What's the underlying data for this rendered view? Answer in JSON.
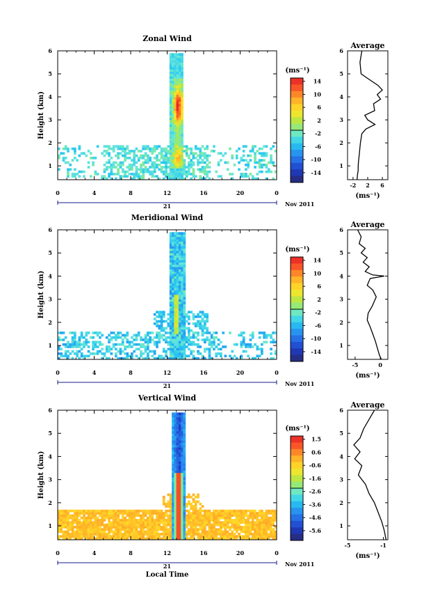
{
  "chart_data": [
    {
      "type": "heatmap",
      "title": "Zonal Wind",
      "ylabel": "Height (km)",
      "x_tick_labels": [
        "0",
        "4",
        "8",
        "12",
        "16",
        "20",
        "0"
      ],
      "y_tick_labels": [
        "1",
        "2",
        "3",
        "4",
        "5",
        "6"
      ],
      "xlim": [
        0,
        24
      ],
      "ylim": [
        0.4,
        6
      ],
      "day_label": "21",
      "month_label": "Nov 2011",
      "colorbar": {
        "unit": "(ms⁻¹)",
        "ticks": [
          "14",
          "10",
          "6",
          "2",
          "-2",
          "-6",
          "-10",
          "-14"
        ],
        "range": [
          -16,
          16
        ]
      },
      "profile": {
        "title": "Average",
        "xlabel": "(ms⁻¹)",
        "x_tick_labels": [
          "-2",
          "2",
          "6"
        ],
        "xlim": [
          -3.5,
          7.5
        ],
        "x": [
          0.4,
          -0.1,
          0.2,
          2.0,
          4.8,
          6.0,
          4.6,
          5.5,
          3.6,
          3.9,
          1.2,
          2.0,
          4.0,
          1.5,
          0.4,
          0.0,
          -0.3,
          -0.5,
          -0.6,
          -0.6,
          -0.8,
          -0.9
        ],
        "y": [
          6.0,
          5.5,
          5.0,
          4.8,
          4.5,
          4.3,
          4.1,
          3.9,
          3.7,
          3.4,
          3.2,
          3.0,
          2.8,
          2.6,
          2.4,
          2.0,
          1.5,
          1.2,
          1.0,
          0.8,
          0.6,
          0.4
        ]
      }
    },
    {
      "type": "heatmap",
      "title": "Meridional Wind",
      "ylabel": "Height (km)",
      "x_tick_labels": [
        "0",
        "4",
        "8",
        "12",
        "16",
        "20",
        "0"
      ],
      "y_tick_labels": [
        "1",
        "2",
        "3",
        "4",
        "5",
        "6"
      ],
      "xlim": [
        0,
        24
      ],
      "ylim": [
        0.4,
        6
      ],
      "day_label": "21",
      "month_label": "Nov 2011",
      "colorbar": {
        "unit": "(ms⁻¹)",
        "ticks": [
          "14",
          "10",
          "6",
          "2",
          "-2",
          "-6",
          "-10",
          "-14"
        ],
        "range": [
          -16,
          16
        ]
      },
      "profile": {
        "title": "Average",
        "xlabel": "(ms⁻¹)",
        "x_tick_labels": [
          "-5",
          "0"
        ],
        "xlim": [
          -6.5,
          1.5
        ],
        "x": [
          -4.5,
          -3.8,
          -4.2,
          -3.0,
          -3.8,
          -2.6,
          -3.4,
          -2.2,
          -3.0,
          -1.5,
          0.8,
          -2.0,
          -2.6,
          -1.5,
          -0.8,
          -1.6,
          -2.4,
          -2.6,
          -2.0,
          -1.5,
          -1.0,
          -0.6,
          -0.2,
          0.2
        ],
        "y": [
          6.0,
          5.7,
          5.4,
          5.2,
          5.0,
          4.8,
          4.6,
          4.4,
          4.2,
          4.05,
          4.0,
          3.9,
          3.6,
          3.4,
          3.1,
          2.7,
          2.4,
          2.1,
          1.8,
          1.5,
          1.2,
          0.9,
          0.6,
          0.4
        ]
      }
    },
    {
      "type": "heatmap",
      "title": "Vertical Wind",
      "ylabel": "Height (km)",
      "xlabel": "Local Time",
      "x_tick_labels": [
        "0",
        "4",
        "8",
        "12",
        "16",
        "20",
        "0"
      ],
      "y_tick_labels": [
        "1",
        "2",
        "3",
        "4",
        "5",
        "6"
      ],
      "xlim": [
        0,
        24
      ],
      "ylim": [
        0.4,
        6
      ],
      "day_label": "21",
      "month_label": "Nov 2011",
      "colorbar": {
        "unit": "(ms⁻¹)",
        "ticks": [
          "1.5",
          "0.6",
          "-0.6",
          "-1.6",
          "-2.6",
          "-3.6",
          "-4.6",
          "-5.6"
        ],
        "range": [
          -6.1,
          2.0
        ]
      },
      "profile": {
        "title": "Average",
        "xlabel": "(ms⁻¹)",
        "x_tick_labels": [
          "-5",
          "-1"
        ],
        "xlim": [
          -5,
          -0.5
        ],
        "x": [
          -2.0,
          -2.6,
          -3.2,
          -3.6,
          -4.3,
          -3.6,
          -4.2,
          -3.4,
          -3.8,
          -3.0,
          -2.6,
          -2.0,
          -1.6,
          -1.2,
          -0.9,
          -0.7
        ],
        "y": [
          6.0,
          5.6,
          5.2,
          4.8,
          4.5,
          4.2,
          3.9,
          3.6,
          3.2,
          2.8,
          2.4,
          2.0,
          1.6,
          1.2,
          0.8,
          0.4
        ]
      }
    }
  ]
}
